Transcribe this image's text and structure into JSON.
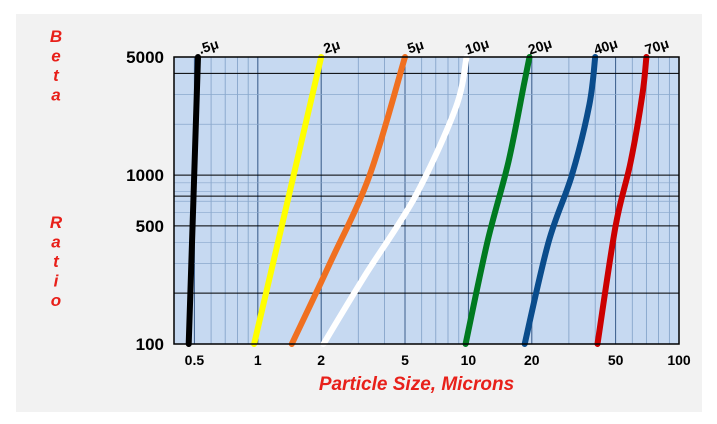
{
  "chart_data": {
    "type": "line",
    "title": "",
    "ylabel": "Beta Ratio",
    "xlabel": "Particle Size, Microns",
    "x_scale": "log",
    "y_scale": "log",
    "xlim": [
      0.4,
      100
    ],
    "ylim": [
      100,
      5000
    ],
    "x_ticks": [
      "0.5",
      "1",
      "2",
      "5",
      "10",
      "20",
      "50",
      "100"
    ],
    "x_tick_values": [
      0.5,
      1,
      2,
      5,
      10,
      20,
      50,
      100
    ],
    "y_ticks": [
      "5000",
      "1000",
      "500",
      "100"
    ],
    "y_tick_values": [
      5000,
      1000,
      500,
      100
    ],
    "y_major_lines": [
      100,
      200,
      500,
      750,
      1000,
      4000,
      5000
    ],
    "grid": true,
    "plot_background": "#c6d9f1",
    "series": [
      {
        "name": ".5μ",
        "color": "#000000",
        "points": [
          [
            0.47,
            100
          ],
          [
            0.52,
            5000
          ]
        ]
      },
      {
        "name": "2μ",
        "color": "#ffff00",
        "points": [
          [
            0.96,
            100
          ],
          [
            1.3,
            500
          ],
          [
            2.0,
            5000
          ]
        ]
      },
      {
        "name": "5μ",
        "color": "#f07020",
        "points": [
          [
            1.45,
            100
          ],
          [
            2.2,
            300
          ],
          [
            3.4,
            1000
          ],
          [
            5.0,
            5000
          ]
        ]
      },
      {
        "name": "10μ",
        "color": "#ffffff",
        "points": [
          [
            2.05,
            100
          ],
          [
            3.2,
            250
          ],
          [
            5.6,
            750
          ],
          [
            8.7,
            2500
          ],
          [
            9.8,
            5000
          ]
        ]
      },
      {
        "name": "20μ",
        "color": "#007a20",
        "points": [
          [
            9.7,
            100
          ],
          [
            12.3,
            400
          ],
          [
            15.5,
            1200
          ],
          [
            18.4,
            3500
          ],
          [
            19.5,
            5000
          ]
        ]
      },
      {
        "name": "40μ",
        "color": "#0a4c8c",
        "points": [
          [
            18.5,
            100
          ],
          [
            24,
            400
          ],
          [
            31,
            1000
          ],
          [
            37.5,
            2600
          ],
          [
            40,
            5000
          ]
        ]
      },
      {
        "name": "70μ",
        "color": "#cc0000",
        "points": [
          [
            41,
            100
          ],
          [
            50,
            500
          ],
          [
            59,
            1200
          ],
          [
            67,
            3000
          ],
          [
            70,
            5000
          ]
        ]
      }
    ]
  }
}
